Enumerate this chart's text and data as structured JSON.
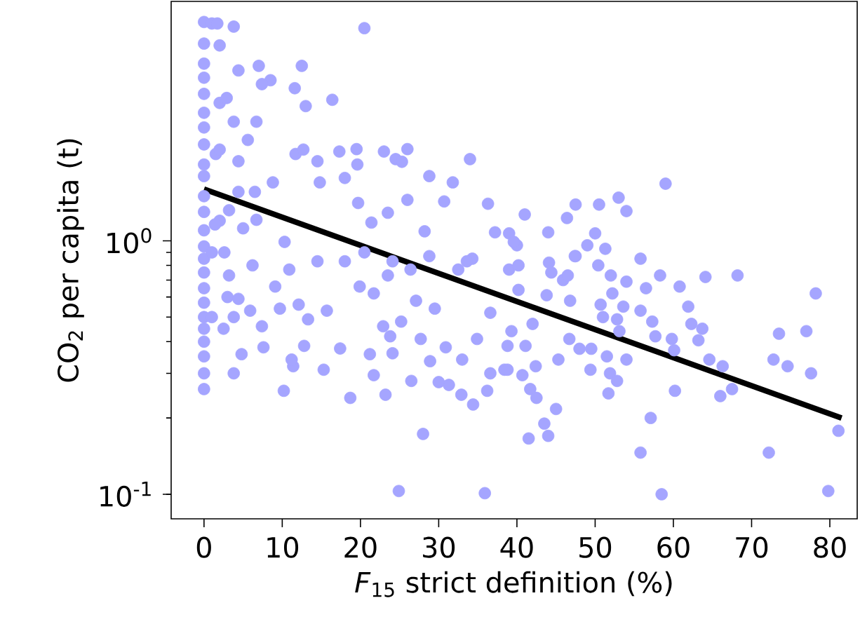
{
  "chart_data": {
    "type": "scatter",
    "xlabel": "*F*$_{15}$ strict definition (%)",
    "ylabel": "CO$_{2}$ per capita (t)",
    "log": "y",
    "xlim": [
      -4.2,
      83.5
    ],
    "ylim": [
      0.08,
      8.8
    ],
    "xticks": [
      0,
      10,
      20,
      30,
      40,
      50,
      60,
      70,
      80
    ],
    "yticks": [
      {
        "value": 0.1,
        "label": "10$^{-1}$"
      },
      {
        "value": 1,
        "label": "10$^{0}$"
      }
    ],
    "grid": false,
    "series": [
      {
        "marker": "circle",
        "color": "#a5a5ff",
        "x": [
          0,
          0,
          0,
          0,
          0,
          0,
          0,
          0,
          0,
          0,
          0,
          0,
          0,
          0,
          0,
          0,
          0,
          0,
          0,
          0,
          0,
          0,
          0,
          0,
          1,
          2,
          1.5,
          2,
          1,
          3,
          2.5,
          1,
          1.7,
          3.8,
          20.5,
          7,
          12.5,
          8.5,
          16.4,
          11.6,
          13,
          11.7,
          17.3,
          19.6,
          14.8,
          26,
          28.8,
          24.5,
          19.5,
          23,
          25.3,
          34,
          31.8,
          30.7,
          36.3,
          39,
          37.2,
          19.7,
          18,
          26,
          21.4,
          23.5,
          28.2,
          8.8,
          6.5,
          12.7,
          14.5,
          4.4,
          59,
          53,
          54,
          50.5,
          47.5,
          46.4,
          41,
          44,
          50,
          49,
          51.3,
          47.5,
          55.8,
          40,
          3.8,
          10.2,
          15.3,
          18.7,
          17.4,
          12.8,
          11.4,
          4.8,
          7.6,
          21.2,
          21.7,
          23.2,
          24.1,
          26.5,
          28,
          24.9,
          35.9,
          34.4,
          32.9,
          31.3,
          30,
          36.2,
          38.4,
          36.6,
          28.9,
          33,
          30.9,
          34.9,
          27.7,
          23.8,
          36.6,
          29.5,
          25.2,
          22.9,
          21.7,
          19.9,
          15.7,
          13.3,
          9.7,
          5.9,
          4.4,
          7.4,
          3.8,
          11.2,
          18,
          14.5,
          10.9,
          6.2,
          3.2,
          9.1,
          12.1,
          27.1,
          32.5,
          39,
          34.3,
          26.4,
          23.5,
          68.2,
          64.1,
          78.2,
          73.5,
          77,
          72.8,
          74.6,
          77.6,
          81.1,
          79.8,
          72.2,
          66,
          67.5,
          66.3,
          64.6,
          63.2,
          63.7,
          62.3,
          61.9,
          60.8,
          58.3,
          56.5,
          55.8,
          57.3,
          57.7,
          59.8,
          60.1,
          60.2,
          57.1,
          55.8,
          58.5,
          54,
          53.6,
          52.2,
          54,
          52,
          50.4,
          50.7,
          51,
          52.8,
          53.1,
          51.5,
          51.9,
          52.8,
          51.7,
          49.4,
          48,
          49.5,
          46.7,
          45.3,
          42.4,
          40.7,
          41.7,
          42.5,
          45,
          43.5,
          44,
          41.5,
          41.1,
          39.3,
          42,
          43.8,
          45.9,
          46.8,
          40.2,
          44.4,
          46.5,
          47.4,
          44.1,
          40.2,
          38.8,
          38.8,
          10.3,
          20.5,
          24.1,
          28.8,
          33.6,
          39.6,
          1.4,
          3.2,
          5,
          2.6,
          6.7,
          4.4,
          2,
          2.9,
          4.4,
          2,
          7.4,
          3.8,
          5.6,
          6.7
        ],
        "values": [
          7.3,
          6.0,
          5.0,
          4.4,
          3.8,
          3.2,
          2.8,
          2.4,
          2.0,
          1.8,
          1.5,
          1.3,
          1.1,
          0.95,
          0.85,
          0.75,
          0.65,
          0.57,
          0.5,
          0.45,
          0.4,
          0.35,
          0.3,
          0.26,
          7.2,
          3.5,
          2.2,
          1.2,
          0.9,
          0.6,
          0.45,
          0.5,
          7.2,
          7.0,
          6.9,
          4.9,
          4.9,
          4.3,
          3.6,
          4.0,
          3.4,
          2.2,
          2.25,
          2.0,
          1.7,
          2.3,
          1.8,
          2.1,
          2.3,
          2.25,
          2.05,
          2.1,
          1.7,
          1.43,
          1.4,
          1.07,
          1.08,
          1.41,
          1.77,
          1.45,
          1.18,
          1.29,
          1.09,
          1.7,
          1.56,
          2.29,
          2.06,
          2.06,
          1.68,
          1.48,
          1.31,
          1.39,
          1.39,
          1.23,
          1.27,
          1.08,
          1.07,
          0.96,
          0.93,
          0.87,
          0.85,
          0.96,
          0.3,
          0.256,
          0.31,
          0.24,
          0.376,
          0.385,
          0.32,
          0.357,
          0.38,
          0.357,
          0.295,
          0.247,
          0.36,
          0.28,
          0.173,
          0.103,
          0.101,
          0.226,
          0.247,
          0.27,
          0.277,
          0.256,
          0.31,
          0.3,
          0.335,
          0.34,
          0.38,
          0.41,
          0.41,
          0.42,
          0.52,
          0.54,
          0.48,
          0.46,
          0.62,
          0.66,
          0.53,
          0.49,
          0.54,
          0.53,
          0.59,
          0.46,
          0.5,
          0.34,
          0.83,
          0.83,
          0.77,
          0.8,
          0.73,
          0.66,
          0.56,
          0.58,
          0.77,
          0.77,
          0.85,
          0.77,
          0.73,
          0.73,
          0.72,
          0.62,
          0.43,
          0.44,
          0.34,
          0.32,
          0.3,
          0.178,
          0.103,
          0.146,
          0.244,
          0.26,
          0.32,
          0.34,
          0.405,
          0.45,
          0.47,
          0.55,
          0.66,
          0.73,
          0.65,
          0.53,
          0.48,
          0.42,
          0.41,
          0.37,
          0.256,
          0.2,
          0.146,
          0.1,
          0.34,
          0.55,
          0.62,
          0.69,
          0.73,
          0.8,
          0.56,
          0.5,
          0.49,
          0.44,
          0.35,
          0.3,
          0.28,
          0.25,
          0.31,
          0.375,
          0.375,
          0.41,
          0.34,
          0.32,
          0.295,
          0.26,
          0.24,
          0.217,
          0.19,
          0.17,
          0.166,
          0.385,
          0.44,
          0.47,
          0.61,
          0.7,
          0.58,
          0.64,
          0.75,
          0.73,
          0.87,
          0.82,
          0.8,
          0.31,
          0.385,
          0.99,
          0.9,
          0.83,
          0.87,
          0.83,
          0.99,
          1.16,
          1.32,
          1.12,
          0.9,
          1.21,
          1.56,
          2.29,
          3.66,
          4.7,
          5.9,
          4.15,
          2.95,
          2.5,
          2.95
        ]
      },
      {
        "type": "line",
        "marker": "none",
        "color": "#000000",
        "x": [
          0,
          81.5
        ],
        "values": [
          1.6,
          0.2
        ]
      }
    ]
  }
}
